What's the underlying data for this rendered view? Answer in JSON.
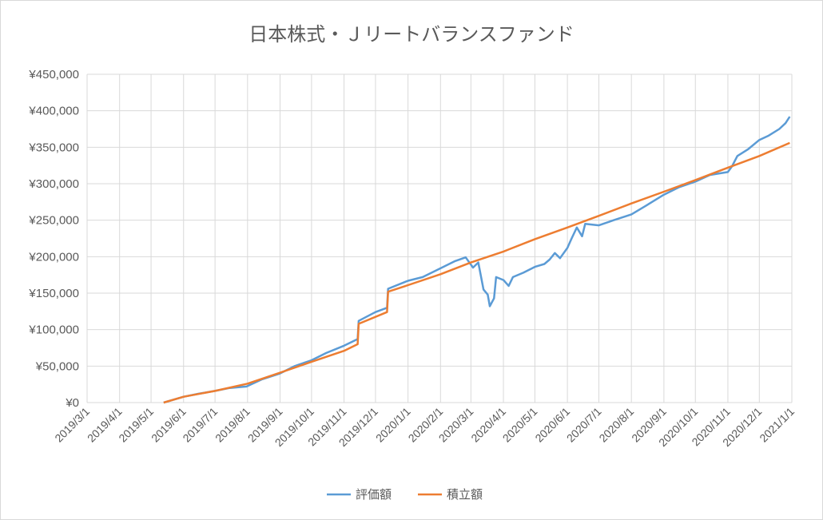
{
  "chart_data": {
    "type": "line",
    "title": "日本株式・Ｊリートバランスファンド",
    "xlabel": "",
    "ylabel": "",
    "ylim": [
      0,
      450000
    ],
    "yticks": [
      "¥0",
      "¥50,000",
      "¥100,000",
      "¥150,000",
      "¥200,000",
      "¥250,000",
      "¥300,000",
      "¥350,000",
      "¥400,000",
      "¥450,000"
    ],
    "xlim": [
      "2019-03-01",
      "2021-01-01"
    ],
    "xticks": [
      "2019/3/1",
      "2019/4/1",
      "2019/5/1",
      "2019/6/1",
      "2019/7/1",
      "2019/8/1",
      "2019/9/1",
      "2019/10/1",
      "2019/11/1",
      "2019/12/1",
      "2020/1/1",
      "2020/2/1",
      "2020/3/1",
      "2020/4/1",
      "2020/5/1",
      "2020/6/1",
      "2020/7/1",
      "2020/8/1",
      "2020/9/1",
      "2020/10/1",
      "2020/11/1",
      "2020/12/1",
      "2021/1/1"
    ],
    "grid": true,
    "legend": "bottom",
    "colors": {
      "評価額": "#5b9bd5",
      "積立額": "#ed7d31"
    },
    "series": [
      {
        "name": "評価額",
        "points": [
          [
            "2019-05-13",
            0
          ],
          [
            "2019-06-01",
            8000
          ],
          [
            "2019-06-15",
            12000
          ],
          [
            "2019-07-01",
            16000
          ],
          [
            "2019-07-15",
            20000
          ],
          [
            "2019-07-31",
            22000
          ],
          [
            "2019-08-15",
            32000
          ],
          [
            "2019-09-01",
            40000
          ],
          [
            "2019-09-15",
            50000
          ],
          [
            "2019-10-01",
            58000
          ],
          [
            "2019-10-15",
            68000
          ],
          [
            "2019-11-01",
            78000
          ],
          [
            "2019-11-14",
            87000
          ],
          [
            "2019-11-15",
            112000
          ],
          [
            "2019-12-01",
            124000
          ],
          [
            "2019-12-12",
            130000
          ],
          [
            "2019-12-13",
            156000
          ],
          [
            "2020-01-01",
            167000
          ],
          [
            "2020-01-15",
            172000
          ],
          [
            "2020-02-01",
            184000
          ],
          [
            "2020-02-15",
            194000
          ],
          [
            "2020-02-25",
            199000
          ],
          [
            "2020-03-03",
            185000
          ],
          [
            "2020-03-08",
            192000
          ],
          [
            "2020-03-13",
            155000
          ],
          [
            "2020-03-17",
            148000
          ],
          [
            "2020-03-19",
            132000
          ],
          [
            "2020-03-23",
            143000
          ],
          [
            "2020-03-25",
            172000
          ],
          [
            "2020-04-01",
            168000
          ],
          [
            "2020-04-06",
            160000
          ],
          [
            "2020-04-10",
            172000
          ],
          [
            "2020-04-20",
            178000
          ],
          [
            "2020-05-01",
            186000
          ],
          [
            "2020-05-10",
            190000
          ],
          [
            "2020-05-15",
            196000
          ],
          [
            "2020-05-20",
            205000
          ],
          [
            "2020-05-25",
            198000
          ],
          [
            "2020-06-01",
            212000
          ],
          [
            "2020-06-05",
            225000
          ],
          [
            "2020-06-10",
            240000
          ],
          [
            "2020-06-15",
            228000
          ],
          [
            "2020-06-18",
            245000
          ],
          [
            "2020-07-01",
            243000
          ],
          [
            "2020-07-15",
            250000
          ],
          [
            "2020-08-01",
            258000
          ],
          [
            "2020-08-15",
            270000
          ],
          [
            "2020-09-01",
            285000
          ],
          [
            "2020-09-15",
            295000
          ],
          [
            "2020-10-01",
            303000
          ],
          [
            "2020-10-15",
            312000
          ],
          [
            "2020-11-01",
            316000
          ],
          [
            "2020-11-05",
            324000
          ],
          [
            "2020-11-10",
            338000
          ],
          [
            "2020-11-20",
            347000
          ],
          [
            "2020-12-01",
            360000
          ],
          [
            "2020-12-10",
            366000
          ],
          [
            "2020-12-20",
            375000
          ],
          [
            "2020-12-26",
            383000
          ],
          [
            "2020-12-30",
            392000
          ]
        ]
      },
      {
        "name": "積立額",
        "points": [
          [
            "2019-05-13",
            0
          ],
          [
            "2019-06-01",
            8000
          ],
          [
            "2019-07-01",
            16000
          ],
          [
            "2019-08-01",
            26000
          ],
          [
            "2019-09-01",
            41000
          ],
          [
            "2019-10-01",
            56000
          ],
          [
            "2019-11-01",
            71000
          ],
          [
            "2019-11-14",
            80000
          ],
          [
            "2019-11-15",
            108000
          ],
          [
            "2019-12-12",
            124000
          ],
          [
            "2019-12-13",
            152000
          ],
          [
            "2020-01-01",
            161000
          ],
          [
            "2020-02-01",
            176000
          ],
          [
            "2020-03-01",
            192000
          ],
          [
            "2020-04-01",
            207000
          ],
          [
            "2020-05-01",
            224000
          ],
          [
            "2020-06-01",
            240000
          ],
          [
            "2020-07-01",
            256000
          ],
          [
            "2020-08-01",
            273000
          ],
          [
            "2020-09-01",
            289000
          ],
          [
            "2020-10-01",
            305000
          ],
          [
            "2020-11-01",
            322000
          ],
          [
            "2020-12-01",
            338000
          ],
          [
            "2020-12-30",
            356000
          ]
        ]
      }
    ]
  }
}
